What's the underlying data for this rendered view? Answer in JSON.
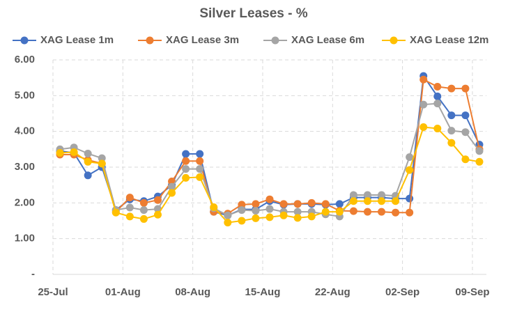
{
  "chart_data": {
    "type": "line",
    "title": "Silver Leases - %",
    "categories": [
      "25-Jul",
      null,
      null,
      null,
      null,
      "01-Aug",
      null,
      null,
      null,
      null,
      "08-Aug",
      null,
      null,
      null,
      null,
      "15-Aug",
      null,
      null,
      null,
      null,
      "22-Aug",
      null,
      null,
      null,
      null,
      "02-Sep",
      null,
      null,
      null,
      null,
      "09-Sep"
    ],
    "series": [
      {
        "name": "XAG Lease 1m",
        "color": "#4472c4",
        "values": [
          3.45,
          3.4,
          2.77,
          3.0,
          1.8,
          2.1,
          2.05,
          2.18,
          2.5,
          3.37,
          3.37,
          1.75,
          1.65,
          1.82,
          1.82,
          2.05,
          1.95,
          1.97,
          1.97,
          1.95,
          1.97,
          2.15,
          2.15,
          2.15,
          2.12,
          2.12,
          5.55,
          4.98,
          4.45,
          4.45,
          3.63
        ]
      },
      {
        "name": "XAG Lease 3m",
        "color": "#ed7d31",
        "values": [
          3.35,
          3.35,
          3.2,
          3.1,
          1.75,
          2.15,
          2.0,
          2.08,
          2.6,
          3.17,
          3.17,
          1.75,
          1.7,
          1.95,
          1.97,
          2.1,
          1.97,
          1.97,
          2.0,
          1.97,
          1.78,
          1.77,
          1.75,
          1.75,
          1.73,
          1.73,
          5.45,
          5.25,
          5.2,
          5.2,
          3.5
        ]
      },
      {
        "name": "XAG Lease 6m",
        "color": "#a5a5a5",
        "values": [
          3.5,
          3.55,
          3.38,
          3.25,
          1.8,
          1.87,
          1.8,
          1.83,
          2.45,
          2.95,
          2.95,
          1.85,
          1.65,
          1.8,
          1.78,
          1.83,
          1.75,
          1.75,
          1.75,
          1.68,
          1.62,
          2.22,
          2.22,
          2.22,
          2.2,
          3.28,
          4.75,
          4.78,
          4.02,
          3.98,
          3.45
        ]
      },
      {
        "name": "XAG Lease 12m",
        "color": "#ffc000",
        "values": [
          3.4,
          3.42,
          3.15,
          3.1,
          1.73,
          1.62,
          1.55,
          1.67,
          2.28,
          2.7,
          2.72,
          1.88,
          1.45,
          1.5,
          1.57,
          1.6,
          1.65,
          1.58,
          1.62,
          1.75,
          1.75,
          2.05,
          2.05,
          2.05,
          2.05,
          2.92,
          4.12,
          4.08,
          3.68,
          3.22,
          3.15
        ]
      }
    ],
    "ylim": [
      0,
      6
    ],
    "yticks": [
      {
        "value": 0,
        "label": "-"
      },
      {
        "value": 1,
        "label": "1.00"
      },
      {
        "value": 2,
        "label": "2.00"
      },
      {
        "value": 3,
        "label": "3.00"
      },
      {
        "value": 4,
        "label": "4.00"
      },
      {
        "value": 5,
        "label": "5.00"
      },
      {
        "value": 6,
        "label": "6.00"
      }
    ],
    "grid": true,
    "legend": "top"
  }
}
